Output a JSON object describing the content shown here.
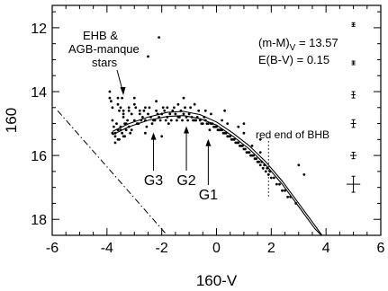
{
  "chart_data": {
    "type": "scatter",
    "title": "",
    "xlabel": "160-V",
    "ylabel": "160",
    "xlim": [
      -6,
      6
    ],
    "ylim": [
      18.5,
      11.3
    ],
    "y_inverted": true,
    "x_ticks": [
      "-6",
      "-4",
      "-2",
      "0",
      "2",
      "4",
      "6"
    ],
    "y_ticks": [
      "12",
      "14",
      "16",
      "18"
    ],
    "grid": false,
    "annotations": {
      "ehb_line1": "EHB &",
      "ehb_line2": "AGB-manque",
      "ehb_line3": "stars",
      "distance_modulus_prefix": "(m-M)",
      "distance_modulus_sub": "V",
      "distance_modulus_value": " = 13.57",
      "reddening": "E(B-V) = 0.15",
      "bhb_label": "red end of BHB",
      "g1": "G1",
      "g2": "G2",
      "g3": "G3"
    },
    "bhb_red_end_x": 1.9,
    "arrows": [
      {
        "label": "G3",
        "x": -2.3,
        "y_tip": 15.2
      },
      {
        "label": "G2",
        "x": -1.1,
        "y_tip": 15.0
      },
      {
        "label": "G1",
        "x": -0.3,
        "y_tip": 15.4
      }
    ],
    "zahb_lines": [
      {
        "name": "",
        "x": [
          -3.8,
          -3.2,
          -2.5,
          -1.8,
          -1.2,
          -0.6,
          0.0,
          0.6,
          1.2,
          1.8,
          2.4,
          3.0,
          3.6,
          4.1
        ],
        "y": [
          15.25,
          15.0,
          14.8,
          14.65,
          14.62,
          14.72,
          14.95,
          15.3,
          15.7,
          16.2,
          16.8,
          17.5,
          18.2,
          18.8
        ]
      },
      {
        "name": "",
        "x": [
          -3.8,
          -3.2,
          -2.5,
          -1.8,
          -1.2,
          -0.6,
          0.0,
          0.6,
          1.2,
          1.8,
          2.4,
          3.0,
          3.6,
          4.3
        ],
        "y": [
          15.35,
          15.1,
          14.9,
          14.78,
          14.75,
          14.85,
          15.05,
          15.4,
          15.8,
          16.3,
          16.9,
          17.6,
          18.3,
          18.9
        ]
      }
    ],
    "dash_dot_line": {
      "x": [
        -5.8,
        -1.8
      ],
      "y": [
        14.6,
        18.5
      ]
    },
    "error_bars": [
      {
        "x": 5.0,
        "y": 11.9,
        "xerr": 0.04,
        "yerr": 0.04
      },
      {
        "x": 5.0,
        "y": 13.1,
        "xerr": 0.06,
        "yerr": 0.05
      },
      {
        "x": 5.0,
        "y": 14.1,
        "xerr": 0.08,
        "yerr": 0.1
      },
      {
        "x": 5.0,
        "y": 15.0,
        "xerr": 0.1,
        "yerr": 0.12
      },
      {
        "x": 5.0,
        "y": 16.0,
        "xerr": 0.12,
        "yerr": 0.1
      },
      {
        "x": 5.0,
        "y": 16.9,
        "xerr": 0.25,
        "yerr": 0.25
      }
    ],
    "points": {
      "x": [
        -3.9,
        -3.85,
        -3.8,
        -3.75,
        -3.7,
        -3.65,
        -3.6,
        -3.55,
        -3.5,
        -3.45,
        -3.4,
        -3.35,
        -3.3,
        -3.25,
        -3.2,
        -3.15,
        -3.1,
        -3.0,
        -2.9,
        -2.8,
        -2.7,
        -2.6,
        -2.5,
        -2.4,
        -2.3,
        -2.2,
        -2.1,
        -2.0,
        -1.9,
        -1.8,
        -1.7,
        -1.6,
        -1.5,
        -1.4,
        -1.3,
        -1.2,
        -1.1,
        -1.0,
        -0.9,
        -0.8,
        -0.7,
        -0.6,
        -0.5,
        -0.4,
        -0.3,
        -0.2,
        -0.1,
        0.0,
        0.1,
        0.2,
        0.3,
        0.4,
        0.5,
        0.6,
        0.7,
        0.8,
        0.9,
        1.0,
        1.1,
        1.2,
        1.3,
        1.4,
        1.5,
        1.6,
        1.7,
        1.8,
        1.9,
        2.0,
        2.2,
        2.4,
        2.6,
        -3.7,
        -3.6,
        -3.5,
        -3.4,
        -3.3,
        -3.6,
        -3.5,
        -3.4,
        -3.8,
        -3.7,
        -3.55,
        -3.45,
        -3.35,
        -3.2,
        -3.1,
        -2.95,
        -2.85,
        -2.75,
        -2.65,
        -2.55,
        -2.45,
        -2.35,
        -2.25,
        -2.15,
        -2.05,
        -1.95,
        -1.85,
        -1.75,
        -1.65,
        -1.55,
        -1.45,
        -1.35,
        -1.25,
        -1.15,
        -1.05,
        -0.95,
        -0.85,
        -0.75,
        -0.65,
        -0.55,
        -0.45,
        -0.35,
        -0.25,
        -0.15,
        -0.05,
        0.05,
        0.15,
        0.25,
        0.35,
        0.45,
        0.55,
        0.65,
        0.75,
        0.85,
        0.95,
        1.05,
        1.15,
        1.25,
        1.35,
        1.45,
        1.55,
        1.65,
        1.75,
        1.85,
        1.95,
        2.1,
        2.3,
        2.5,
        2.7,
        2.9,
        -3.9,
        -3.8,
        -3.6,
        -3.4,
        -3.2,
        -3.0,
        -2.8,
        -2.6,
        -2.2,
        -1.8,
        -1.4,
        -0.4,
        -0.2,
        0.2,
        0.4,
        0.8,
        1.0,
        1.3,
        1.6,
        1.0,
        0.3,
        -2.5,
        -2.1,
        -3.0,
        -1.2,
        -0.8,
        -2.6,
        -2.0,
        1.6,
        3.0,
        3.2
      ],
      "y": [
        14.0,
        14.3,
        14.9,
        15.1,
        15.3,
        15.0,
        15.2,
        14.6,
        15.1,
        15.3,
        14.8,
        15.0,
        15.2,
        14.9,
        15.1,
        15.3,
        14.7,
        14.9,
        15.0,
        14.7,
        14.8,
        14.9,
        14.7,
        14.8,
        14.9,
        14.6,
        14.8,
        14.7,
        14.6,
        14.8,
        14.7,
        14.6,
        14.7,
        14.8,
        14.6,
        14.7,
        14.8,
        14.7,
        14.8,
        14.9,
        14.8,
        14.9,
        15.0,
        14.9,
        15.0,
        15.0,
        15.1,
        15.1,
        15.2,
        15.2,
        15.3,
        15.4,
        15.4,
        15.5,
        15.6,
        15.6,
        15.7,
        15.8,
        15.9,
        15.9,
        16.0,
        16.1,
        16.2,
        16.3,
        16.4,
        16.5,
        16.6,
        16.7,
        16.9,
        17.1,
        17.3,
        15.4,
        15.5,
        15.2,
        15.4,
        15.0,
        14.4,
        14.5,
        14.6,
        15.3,
        15.6,
        15.5,
        14.2,
        15.4,
        14.5,
        15.2,
        14.5,
        15.0,
        14.9,
        14.6,
        15.1,
        14.5,
        15.0,
        14.9,
        14.7,
        14.9,
        14.5,
        14.9,
        15.0,
        14.9,
        14.5,
        14.9,
        14.8,
        14.9,
        14.5,
        14.9,
        14.5,
        14.9,
        14.9,
        14.6,
        15.0,
        14.8,
        15.0,
        15.2,
        15.0,
        15.1,
        15.2,
        15.2,
        15.3,
        15.3,
        15.4,
        15.5,
        15.5,
        15.6,
        15.7,
        15.7,
        15.8,
        15.9,
        16.0,
        16.0,
        16.1,
        16.2,
        16.2,
        16.3,
        16.4,
        16.5,
        16.7,
        16.9,
        17.1,
        17.3,
        17.5,
        14.2,
        14.5,
        14.2,
        14.7,
        14.6,
        14.4,
        14.6,
        14.5,
        14.3,
        14.5,
        14.4,
        14.6,
        14.7,
        14.9,
        15.0,
        15.1,
        15.3,
        15.7,
        15.9,
        15.0,
        14.6,
        12.9,
        12.3,
        14.2,
        14.2,
        14.4,
        15.3,
        15.4,
        15.5,
        16.3,
        16.6
      ]
    }
  }
}
